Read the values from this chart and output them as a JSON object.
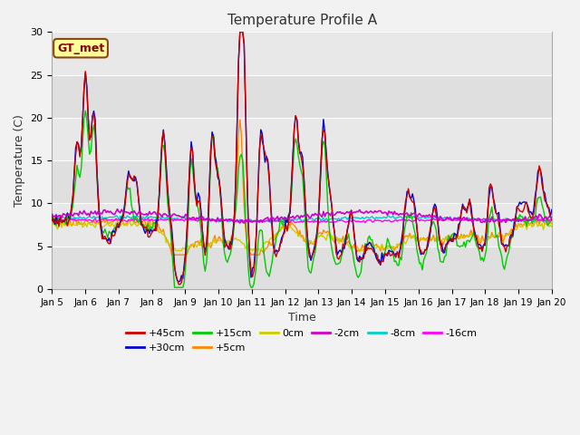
{
  "title": "Temperature Profile A",
  "xlabel": "Time",
  "ylabel": "Temperature (C)",
  "ylim": [
    0,
    30
  ],
  "background_color": "#f2f2f2",
  "plot_bg_color": "#e8e8e8",
  "series": {
    "+45cm": {
      "color": "#cc0000",
      "lw": 1.0,
      "zorder": 6
    },
    "+30cm": {
      "color": "#0000cc",
      "lw": 1.0,
      "zorder": 5
    },
    "+15cm": {
      "color": "#00cc00",
      "lw": 1.0,
      "zorder": 4
    },
    "+5cm": {
      "color": "#ff8800",
      "lw": 1.0,
      "zorder": 3
    },
    "0cm": {
      "color": "#cccc00",
      "lw": 1.0,
      "zorder": 3
    },
    "-2cm": {
      "color": "#cc00cc",
      "lw": 1.2,
      "zorder": 7
    },
    "-8cm": {
      "color": "#00cccc",
      "lw": 1.0,
      "zorder": 3
    },
    "-16cm": {
      "color": "#ff00ff",
      "lw": 1.0,
      "zorder": 3
    }
  },
  "xtick_labels": [
    "Jan 5",
    "Jan 6",
    "Jan 7",
    "Jan 8",
    "Jan 9",
    "Jan 10",
    "Jan 11",
    "Jan 12",
    "Jan 13",
    "Jan 14",
    "Jan 15",
    "Jan 16",
    "Jan 17",
    "Jan 18",
    "Jan 19",
    "Jan 20"
  ],
  "annotation_text": "GT_met",
  "annotation_color": "#8B0000",
  "annotation_bg": "#ffff99",
  "annotation_border": "#8B4513",
  "yticks": [
    0,
    5,
    10,
    15,
    20,
    25,
    30
  ]
}
